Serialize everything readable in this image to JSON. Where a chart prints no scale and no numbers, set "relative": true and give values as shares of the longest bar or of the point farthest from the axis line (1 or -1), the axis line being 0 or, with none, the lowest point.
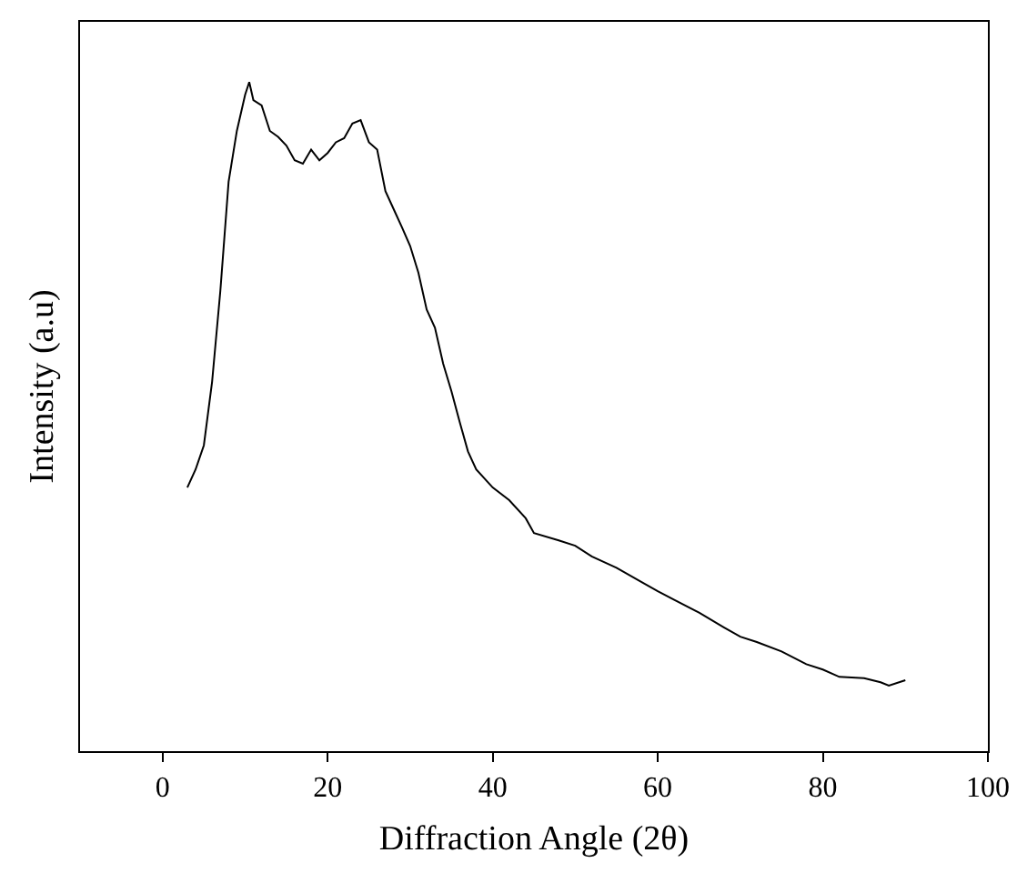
{
  "chart_data": {
    "type": "line",
    "xlabel": "Diffraction Angle (2θ)",
    "ylabel": "Intensity (a.u)",
    "relative": true,
    "xlim": [
      -10,
      100
    ],
    "xticks": [
      0,
      20,
      40,
      60,
      80,
      100
    ],
    "marker": "none",
    "line_style": "solid",
    "x": [
      3,
      4,
      5,
      6,
      7,
      8,
      9,
      10,
      10.5,
      11,
      12,
      13,
      14,
      15,
      16,
      17,
      18,
      19,
      20,
      21,
      22,
      23,
      24,
      25,
      26,
      27,
      28,
      29,
      30,
      31,
      32,
      33,
      34,
      35,
      36,
      37,
      38,
      40,
      42,
      44,
      45,
      48,
      50,
      52,
      55,
      58,
      60,
      62,
      65,
      68,
      70,
      72,
      75,
      78,
      80,
      82,
      85,
      87,
      88,
      90
    ],
    "series": [
      {
        "color": "#000000",
        "values": [
          0.394,
          0.421,
          0.457,
          0.552,
          0.688,
          0.851,
          0.927,
          0.981,
          1,
          0.973,
          0.965,
          0.927,
          0.918,
          0.905,
          0.883,
          0.878,
          0.899,
          0.883,
          0.894,
          0.91,
          0.916,
          0.938,
          0.943,
          0.91,
          0.899,
          0.837,
          0.81,
          0.783,
          0.755,
          0.715,
          0.66,
          0.633,
          0.579,
          0.538,
          0.492,
          0.448,
          0.421,
          0.394,
          0.375,
          0.348,
          0.326,
          0.315,
          0.307,
          0.291,
          0.274,
          0.253,
          0.239,
          0.226,
          0.207,
          0.185,
          0.171,
          0.163,
          0.149,
          0.13,
          0.122,
          0.111,
          0.109,
          0.103,
          0.098,
          0.106
        ]
      }
    ]
  }
}
